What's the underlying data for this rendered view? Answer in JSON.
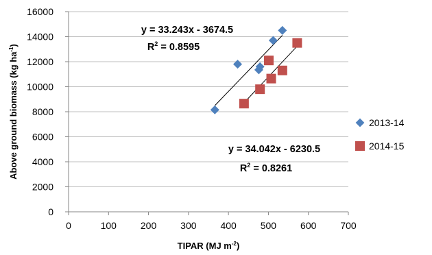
{
  "chart_data": {
    "type": "scatter",
    "xlabel": "TIPAR (MJ m",
    "xlabel_sup": "-2",
    "xlabel_end": ")",
    "ylabel": "Above ground biomass (kg ha",
    "ylabel_sup": "-1",
    "ylabel_end": ")",
    "xlim": [
      0,
      700
    ],
    "ylim": [
      0,
      16000
    ],
    "x_ticks": [
      "0",
      "100",
      "200",
      "300",
      "400",
      "500",
      "600",
      "700"
    ],
    "y_ticks": [
      "0",
      "2000",
      "4000",
      "6000",
      "8000",
      "10000",
      "12000",
      "14000",
      "16000"
    ],
    "grid": "horizontal",
    "legend_position": "right",
    "series": [
      {
        "name": "2013-14",
        "marker": "diamond",
        "color": "#4F81BD",
        "points": [
          {
            "x": 366,
            "y": 8150
          },
          {
            "x": 423,
            "y": 11800
          },
          {
            "x": 476,
            "y": 11350
          },
          {
            "x": 479,
            "y": 11600
          },
          {
            "x": 512,
            "y": 13700
          },
          {
            "x": 535,
            "y": 14500
          }
        ],
        "trendline": {
          "x_start": 366,
          "x_end": 535
        },
        "equation": "y = 33.243x - 3674.5",
        "r2_label": "R",
        "r2_sup": "2",
        "r2_value": " = 0.8595"
      },
      {
        "name": "2014-15",
        "marker": "square",
        "color": "#C0504D",
        "points": [
          {
            "x": 439,
            "y": 8650
          },
          {
            "x": 479,
            "y": 9800
          },
          {
            "x": 501,
            "y": 12100
          },
          {
            "x": 507,
            "y": 10650
          },
          {
            "x": 535,
            "y": 11300
          },
          {
            "x": 572,
            "y": 13500
          }
        ],
        "trendline": {
          "x_start": 439,
          "x_end": 572
        },
        "equation": "y = 34.042x - 6230.5",
        "r2_label": "R",
        "r2_sup": "2",
        "r2_value": " = 0.8261"
      }
    ]
  }
}
